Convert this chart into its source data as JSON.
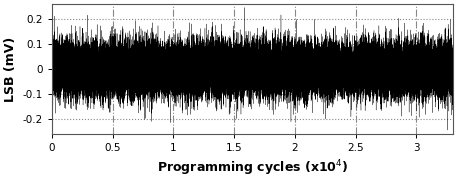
{
  "title": "",
  "xlabel": "Programming cycles (x10$^4$)",
  "ylabel": "LSB (mV)",
  "xlim": [
    0,
    33000
  ],
  "ylim": [
    -0.26,
    0.26
  ],
  "yticks": [
    -0.2,
    -0.1,
    0,
    0.1,
    0.2
  ],
  "xticks": [
    0,
    5000,
    10000,
    15000,
    20000,
    25000,
    30000
  ],
  "xtick_labels": [
    "0",
    "0.5",
    "1",
    "1.5",
    "2",
    "2.5",
    "3"
  ],
  "n_points": 33000,
  "signal_std": 0.055,
  "line_color": "#000000",
  "background_color": "#ffffff",
  "grid_color": "#888888",
  "figsize": [
    4.57,
    1.82
  ],
  "dpi": 100,
  "seed": 42
}
